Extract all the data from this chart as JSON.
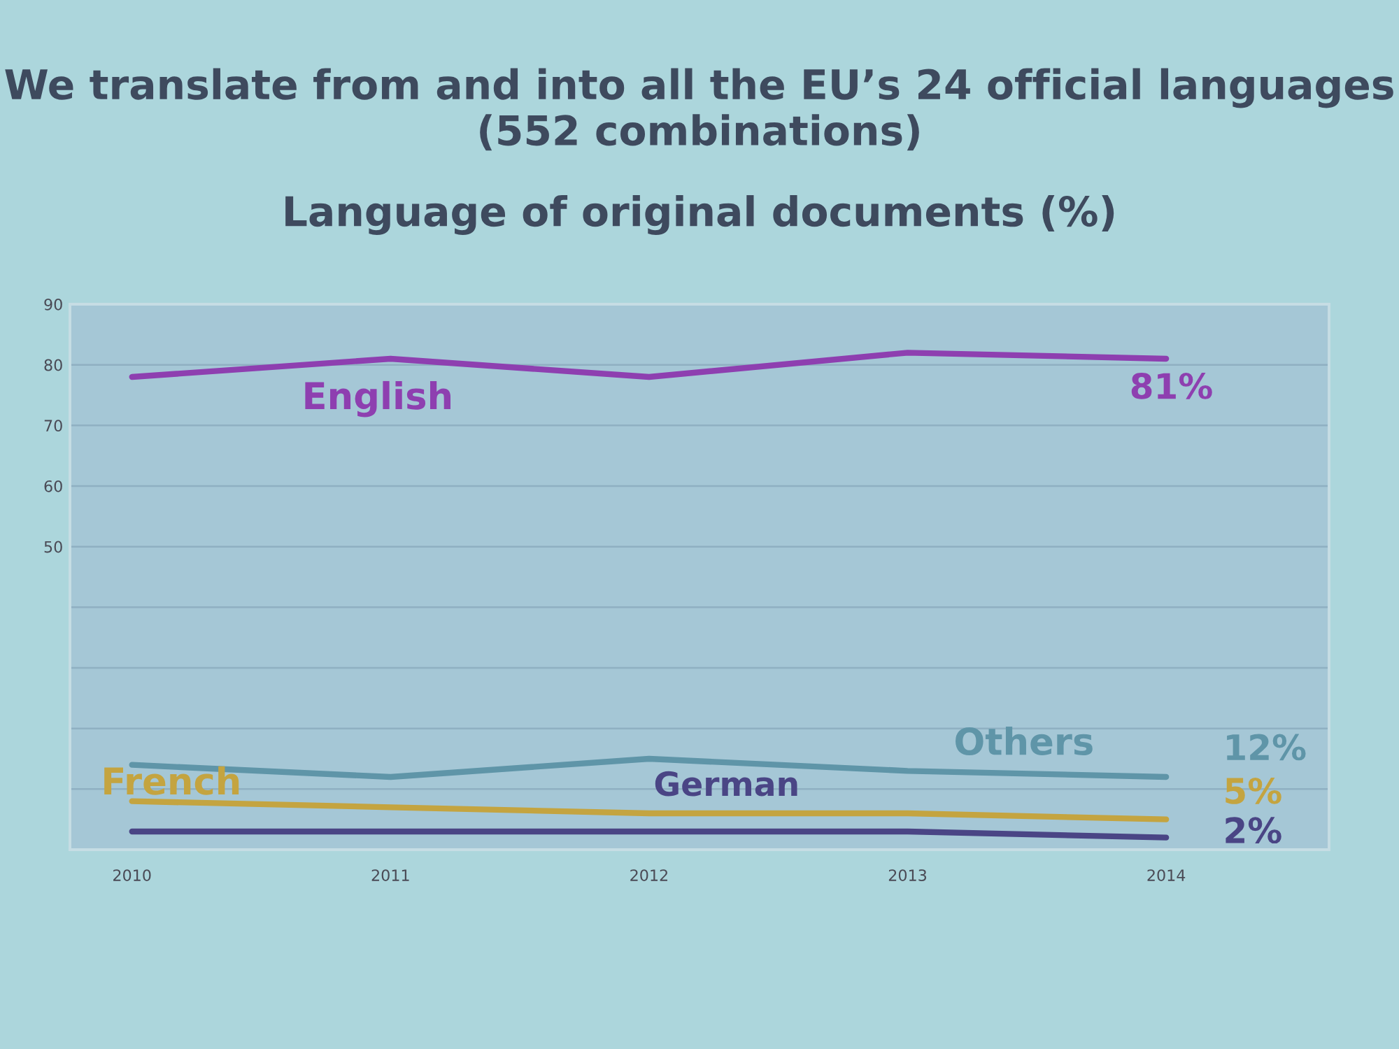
{
  "chart_data": {
    "type": "line",
    "title": "We translate from and into all the EU’s 24 official languages (552 combinations)",
    "subtitle": "Language of original documents (%)",
    "categories": [
      "2010",
      "2011",
      "2012",
      "2013",
      "2014"
    ],
    "series": [
      {
        "name": "English",
        "color": "#8e3fb0",
        "values": [
          78,
          81,
          78,
          82,
          81
        ],
        "value_labels": [
          null,
          null,
          null,
          null,
          "81%"
        ]
      },
      {
        "name": "Others",
        "color": "#5f95a8",
        "values": [
          14,
          12,
          15,
          13,
          12
        ],
        "value_labels": [
          null,
          null,
          null,
          null,
          "12%"
        ]
      },
      {
        "name": "French",
        "color": "#c4a440",
        "values": [
          8,
          7,
          6,
          6,
          5
        ],
        "value_labels": [
          null,
          null,
          null,
          null,
          "5%"
        ]
      },
      {
        "name": "German",
        "color": "#4a4585",
        "values": [
          3,
          3,
          3,
          3,
          2
        ],
        "value_labels": [
          null,
          null,
          null,
          null,
          "2%"
        ]
      }
    ],
    "ylim": [
      0,
      90
    ],
    "yticks": [
      {
        "value": 0,
        "label": null
      },
      {
        "value": 10,
        "label": null
      },
      {
        "value": 20,
        "label": null
      },
      {
        "value": 30,
        "label": null
      },
      {
        "value": 40,
        "label": null
      },
      50,
      60,
      70,
      80,
      90
    ],
    "grid": "y",
    "marker": "none",
    "line_style": "solid"
  }
}
